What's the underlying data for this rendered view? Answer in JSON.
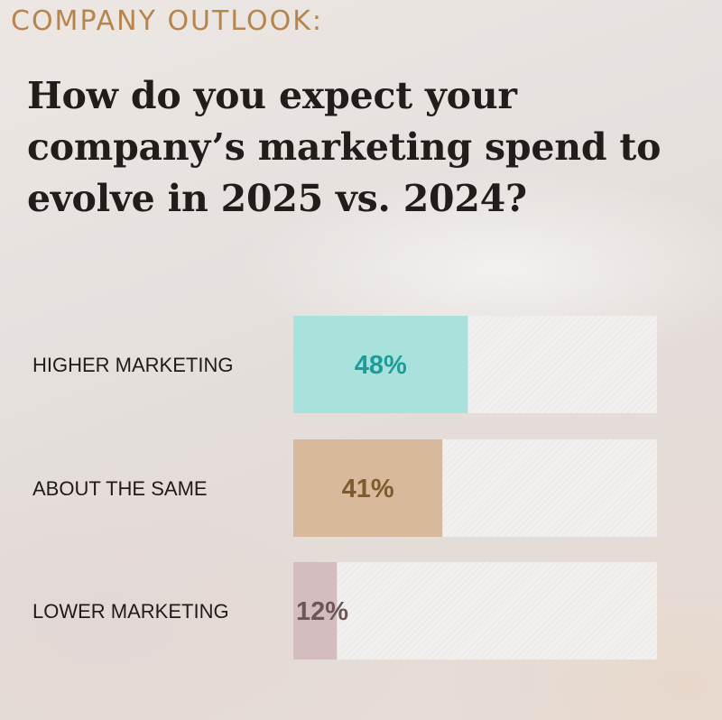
{
  "kicker": "COMPANY OUTLOOK:",
  "question": "How do you expect your company’s marketing spend to evolve in 2025 vs. 2024?",
  "chart_data": {
    "type": "bar",
    "orientation": "horizontal",
    "title": "",
    "xlabel": "",
    "ylabel": "",
    "xlim": [
      0,
      100
    ],
    "grid": false,
    "legend": "none",
    "categories": [
      "HIGHER MARKETING",
      "ABOUT THE SAME",
      "LOWER MARKETING"
    ],
    "values": [
      48,
      41,
      12
    ],
    "data_labels": [
      "48%",
      "41%",
      "12%"
    ],
    "colors": [
      "#a9e1dd",
      "#d9b99b",
      "#d3bdbf"
    ],
    "label_colors": [
      "#1e9c99",
      "#7e5a2f",
      "#6d5558"
    ],
    "track_color": "#f1efee"
  }
}
